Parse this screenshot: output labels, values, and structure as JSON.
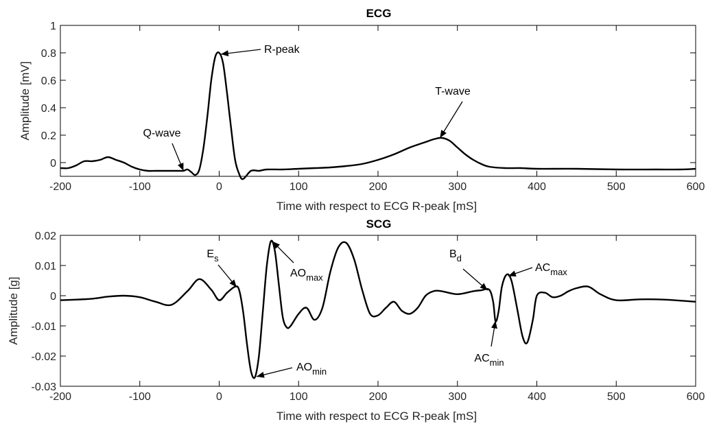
{
  "chart_data": [
    {
      "type": "line",
      "title": "ECG",
      "xlabel": "Time with respect to ECG R-peak [mS]",
      "ylabel": "Amplitude [mV]",
      "xlim": [
        -200,
        600
      ],
      "ylim": [
        -0.1,
        1
      ],
      "xticks": [
        -200,
        -100,
        0,
        100,
        200,
        300,
        400,
        500,
        600
      ],
      "xtick_labels": [
        "-200",
        "-100",
        "0",
        "100",
        "200",
        "300",
        "400",
        "500",
        "600"
      ],
      "yticks": [
        0,
        0.2,
        0.4,
        0.6,
        0.8,
        1
      ],
      "ytick_labels": [
        "0",
        "0.2",
        "0.4",
        "0.6",
        "0.8",
        "1"
      ],
      "grid": false,
      "series": [
        {
          "x": [
            -200,
            -190,
            -180,
            -170,
            -160,
            -150,
            -140,
            -130,
            -120,
            -110,
            -100,
            -90,
            -80,
            -70,
            -60,
            -50,
            -45,
            -40,
            -35,
            -30,
            -25,
            -20,
            -15,
            -10,
            -5,
            0,
            5,
            10,
            15,
            20,
            25,
            30,
            40,
            50,
            60,
            80,
            100,
            120,
            140,
            160,
            180,
            200,
            220,
            240,
            260,
            270,
            280,
            290,
            300,
            310,
            320,
            330,
            340,
            360,
            380,
            400,
            450,
            500,
            550,
            580,
            600
          ],
          "y": [
            -0.04,
            -0.04,
            -0.02,
            0.01,
            0.01,
            0.02,
            0.04,
            0.02,
            0.0,
            -0.03,
            -0.05,
            -0.06,
            -0.06,
            -0.06,
            -0.06,
            -0.06,
            -0.06,
            -0.05,
            -0.07,
            -0.09,
            -0.05,
            0.1,
            0.33,
            0.6,
            0.77,
            0.8,
            0.72,
            0.5,
            0.25,
            0.02,
            -0.08,
            -0.12,
            -0.06,
            -0.06,
            -0.05,
            -0.05,
            -0.045,
            -0.04,
            -0.035,
            -0.025,
            -0.01,
            0.02,
            0.06,
            0.11,
            0.15,
            0.17,
            0.18,
            0.16,
            0.11,
            0.06,
            0.02,
            -0.01,
            -0.03,
            -0.04,
            -0.04,
            -0.045,
            -0.045,
            -0.05,
            -0.05,
            -0.05,
            -0.045
          ]
        }
      ],
      "annotations": [
        {
          "text": "R-peak",
          "x": 2,
          "y": 0.79
        },
        {
          "text": "T-wave",
          "x": 278,
          "y": 0.18
        },
        {
          "text": "Q-wave",
          "x": -45,
          "y": -0.06
        }
      ]
    },
    {
      "type": "line",
      "title": "SCG",
      "xlabel": "Time with respect to ECG R-peak [mS]",
      "ylabel": "Amplitude [g]",
      "xlim": [
        -200,
        600
      ],
      "ylim": [
        -0.03,
        0.02
      ],
      "xticks": [
        -200,
        -100,
        0,
        100,
        200,
        300,
        400,
        500,
        600
      ],
      "xtick_labels": [
        "-200",
        "-100",
        "0",
        "100",
        "200",
        "300",
        "400",
        "500",
        "600"
      ],
      "yticks": [
        -0.03,
        -0.02,
        -0.01,
        0,
        0.01,
        0.02
      ],
      "ytick_labels": [
        "-0.03",
        "-0.02",
        "-0.01",
        "0",
        "0.01",
        "0.02"
      ],
      "grid": false,
      "series": [
        {
          "x": [
            -200,
            -180,
            -160,
            -140,
            -120,
            -100,
            -80,
            -60,
            -40,
            -25,
            -10,
            0,
            10,
            20,
            25,
            30,
            35,
            40,
            45,
            50,
            55,
            60,
            65,
            70,
            75,
            80,
            85,
            90,
            100,
            110,
            120,
            130,
            140,
            150,
            160,
            170,
            180,
            190,
            200,
            210,
            220,
            230,
            240,
            250,
            260,
            270,
            280,
            300,
            320,
            330,
            340,
            345,
            348,
            352,
            356,
            362,
            368,
            375,
            382,
            388,
            395,
            400,
            410,
            420,
            430,
            440,
            450,
            465,
            480,
            500,
            530,
            560,
            600
          ],
          "y": [
            -0.0015,
            -0.0013,
            -0.001,
            -0.0003,
            0.0,
            -0.0005,
            -0.002,
            -0.003,
            0.0015,
            0.0055,
            0.002,
            -0.0015,
            0.001,
            0.003,
            0.002,
            -0.005,
            -0.016,
            -0.025,
            -0.027,
            -0.02,
            -0.005,
            0.01,
            0.018,
            0.015,
            0.004,
            -0.007,
            -0.0105,
            -0.01,
            -0.006,
            -0.004,
            -0.008,
            -0.004,
            0.008,
            0.016,
            0.0175,
            0.012,
            0.002,
            -0.006,
            -0.0065,
            -0.004,
            -0.002,
            -0.005,
            -0.006,
            -0.004,
            0.0,
            0.0015,
            0.0015,
            0.0005,
            0.0015,
            0.0018,
            0.002,
            -0.002,
            -0.0085,
            -0.005,
            0.003,
            0.007,
            0.005,
            -0.004,
            -0.0135,
            -0.0155,
            -0.008,
            0.0,
            0.001,
            -0.0005,
            0.0,
            0.0015,
            0.0025,
            0.003,
            0.0005,
            -0.0015,
            -0.0012,
            -0.0013,
            -0.002
          ]
        }
      ],
      "annotations": [
        {
          "text": "E",
          "sub": "s",
          "x": 22,
          "y": 0.0028
        },
        {
          "text": "AO",
          "sub": "max",
          "x": 67,
          "y": 0.018
        },
        {
          "text": "AO",
          "sub": "min",
          "x": 47,
          "y": -0.0268
        },
        {
          "text": "B",
          "sub": "d",
          "x": 338,
          "y": 0.0018
        },
        {
          "text": "AC",
          "sub": "max",
          "x": 364,
          "y": 0.0065
        },
        {
          "text": "AC",
          "sub": "min",
          "x": 348,
          "y": -0.0083
        }
      ]
    }
  ]
}
